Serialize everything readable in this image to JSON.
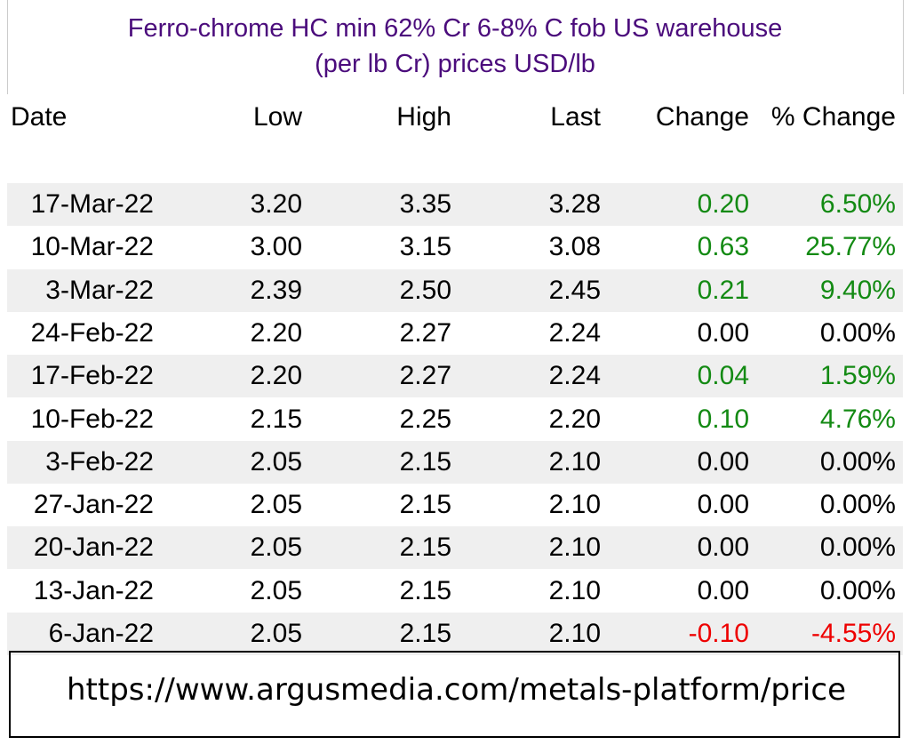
{
  "title": {
    "line1": "Ferro-chrome HC min 62% Cr 6-8% C fob US warehouse",
    "line2": "(per lb Cr) prices USD/lb"
  },
  "table": {
    "columns": [
      "Date",
      "Low",
      "High",
      "Last",
      "Change",
      "% Change"
    ],
    "rows": [
      [
        "17-Mar-22",
        "3.20",
        "3.35",
        "3.28",
        "0.20",
        "6.50%"
      ],
      [
        "10-Mar-22",
        "3.00",
        "3.15",
        "3.08",
        "0.63",
        "25.77%"
      ],
      [
        "3-Mar-22",
        "2.39",
        "2.50",
        "2.45",
        "0.21",
        "9.40%"
      ],
      [
        "24-Feb-22",
        "2.20",
        "2.27",
        "2.24",
        "0.00",
        "0.00%"
      ],
      [
        "17-Feb-22",
        "2.20",
        "2.27",
        "2.24",
        "0.04",
        "1.59%"
      ],
      [
        "10-Feb-22",
        "2.15",
        "2.25",
        "2.20",
        "0.10",
        "4.76%"
      ],
      [
        "3-Feb-22",
        "2.05",
        "2.15",
        "2.10",
        "0.00",
        "0.00%"
      ],
      [
        "27-Jan-22",
        "2.05",
        "2.15",
        "2.10",
        "0.00",
        "0.00%"
      ],
      [
        "20-Jan-22",
        "2.05",
        "2.15",
        "2.10",
        "0.00",
        "0.00%"
      ],
      [
        "13-Jan-22",
        "2.05",
        "2.15",
        "2.10",
        "0.00",
        "0.00%"
      ],
      [
        "6-Jan-22",
        "2.05",
        "2.15",
        "2.10",
        "-0.10",
        "-4.55%"
      ]
    ],
    "change_colors": [
      "#138a13",
      "#138a13",
      "#138a13",
      "#000000",
      "#138a13",
      "#138a13",
      "#000000",
      "#000000",
      "#000000",
      "#000000",
      "#ee0000"
    ]
  },
  "footer": {
    "url": "https://www.argusmedia.com/metals-platform/price"
  }
}
